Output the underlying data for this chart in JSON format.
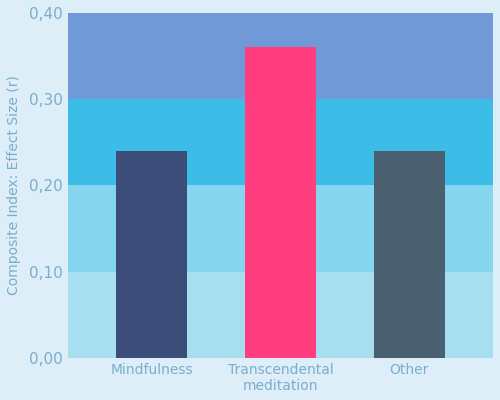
{
  "categories": [
    "Mindfulness",
    "Transcendental\nmeditation",
    "Other"
  ],
  "values": [
    0.24,
    0.36,
    0.24
  ],
  "bar_colors": [
    "#3d4d7a",
    "#ff3d7f",
    "#4a6070"
  ],
  "ylabel": "Composite Index: Effect Size (r)",
  "ylim": [
    0.0,
    0.4
  ],
  "yticks": [
    0.0,
    0.1,
    0.2,
    0.3,
    0.4
  ],
  "ytick_labels": [
    "0,00",
    "0,10",
    "0,20",
    "0,30",
    "0,40"
  ],
  "background_outer": "#ddeef8",
  "bands": [
    {
      "ymin": 0.3,
      "ymax": 0.4,
      "color": "#7099d8"
    },
    {
      "ymin": 0.2,
      "ymax": 0.3,
      "color": "#3bbde8"
    },
    {
      "ymin": 0.1,
      "ymax": 0.2,
      "color": "#85d5ef"
    },
    {
      "ymin": 0.0,
      "ymax": 0.1,
      "color": "#a8dff0"
    }
  ],
  "bar_width": 0.55,
  "tick_color": "#7aaecc",
  "label_color": "#7aaecc",
  "ylabel_color": "#7aaecc",
  "figsize": [
    5.0,
    4.0
  ],
  "dpi": 100
}
